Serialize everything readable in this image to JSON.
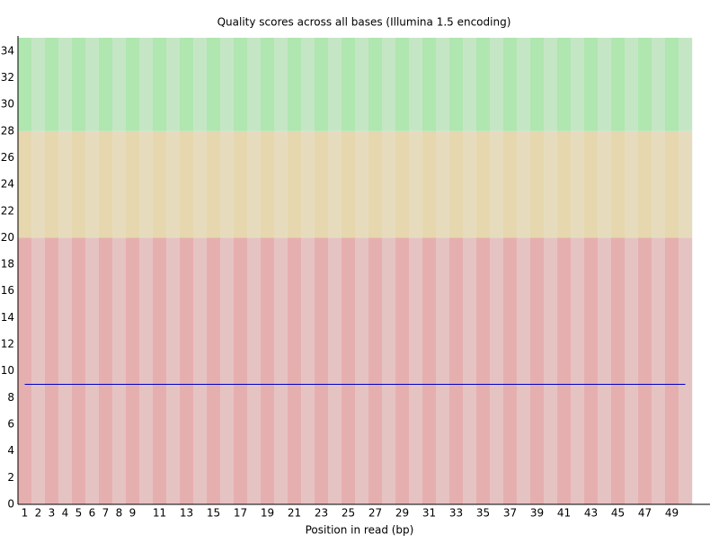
{
  "chart_data": {
    "type": "line",
    "title": "Quality scores across all bases (Illumina 1.5 encoding)",
    "x_label": "Position in read (bp)",
    "categories": [
      "1",
      "2",
      "3",
      "4",
      "5",
      "6",
      "7",
      "8",
      "9",
      null,
      "11",
      null,
      "13",
      null,
      "15",
      null,
      "17",
      null,
      "19",
      null,
      "21",
      null,
      "23",
      null,
      "25",
      null,
      "27",
      null,
      "29",
      null,
      "31",
      null,
      "33",
      null,
      "35",
      null,
      "37",
      null,
      "39",
      null,
      "41",
      null,
      "43",
      null,
      "45",
      null,
      "47",
      null,
      "49",
      null
    ],
    "series": [
      {
        "color": "#ff3300",
        "values": [
          9,
          9,
          9,
          9,
          9,
          9,
          9,
          9,
          9,
          9,
          9,
          9,
          9,
          9,
          9,
          9,
          9,
          9,
          9,
          9,
          9,
          9,
          9,
          9,
          9,
          9,
          9,
          9,
          9,
          9,
          9,
          9,
          9,
          9,
          9,
          9,
          9,
          9,
          9,
          9,
          9,
          9,
          9,
          9,
          9,
          9,
          9,
          9,
          9,
          9
        ]
      },
      {
        "color": "#0000cc",
        "values": [
          9,
          9,
          9,
          9,
          9,
          9,
          9,
          9,
          9,
          9,
          9,
          9,
          9,
          9,
          9,
          9,
          9,
          9,
          9,
          9,
          9,
          9,
          9,
          9,
          9,
          9,
          9,
          9,
          9,
          9,
          9,
          9,
          9,
          9,
          9,
          9,
          9,
          9,
          9,
          9,
          9,
          9,
          9,
          9,
          9,
          9,
          9,
          9,
          9,
          9
        ]
      }
    ],
    "bands": [
      {
        "from": 0,
        "to": 20,
        "colors": [
          "#e6afaf",
          "#e6c3c3"
        ]
      },
      {
        "from": 20,
        "to": 28,
        "colors": [
          "#e6d7af",
          "#e6dcbd"
        ]
      },
      {
        "from": 28,
        "to": 35,
        "colors": [
          "#b0e6b0",
          "#c5e6c5"
        ]
      }
    ],
    "ylim": [
      0,
      35
    ],
    "yticks": [
      0,
      2,
      4,
      6,
      8,
      10,
      12,
      14,
      16,
      18,
      20,
      22,
      24,
      26,
      28,
      30,
      32,
      34
    ],
    "grid": false
  }
}
